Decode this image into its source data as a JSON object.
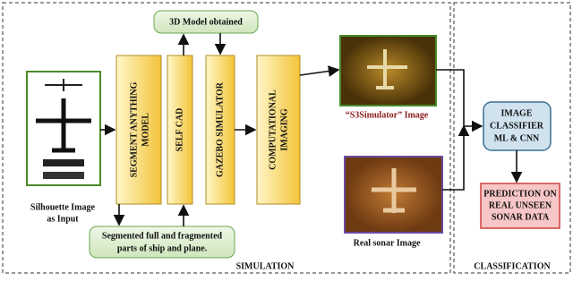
{
  "sections": {
    "simulation": "SIMULATION",
    "classification": "CLASSIFICATION"
  },
  "nodes": {
    "model_obtained": "3D Model obtained",
    "segment_anything": [
      "SEGMENT ANYTHING",
      "MODEL"
    ],
    "self_cad": "SELF CAD",
    "gazebo": "GAZEBO SIMULATOR",
    "computational": [
      "COMPUTATIONAL",
      "IMAGING"
    ],
    "silhouette_label": [
      "Silhouette Image",
      "as Input"
    ],
    "segmented": [
      "Segmented full and fragmented",
      "parts of ship and plane."
    ],
    "s3_label": "“S3Simulator” Image",
    "real_label": "Real sonar Image",
    "classifier": [
      "IMAGE",
      "CLASSIFIER",
      "ML & CNN"
    ],
    "prediction": [
      "PREDICTION ON",
      "REAL UNSEEN",
      "SONAR DATA"
    ]
  }
}
